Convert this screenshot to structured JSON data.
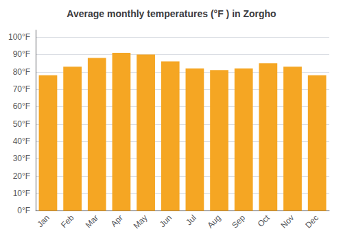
{
  "chart_data": {
    "type": "bar",
    "title": "Average monthly temperatures (°F ) in Zorgho",
    "categories": [
      "Jan",
      "Feb",
      "Mar",
      "Apr",
      "May",
      "Jun",
      "Jul",
      "Aug",
      "Sep",
      "Oct",
      "Nov",
      "Dec"
    ],
    "values": [
      78,
      83,
      88,
      91,
      90,
      86,
      82,
      81,
      82,
      85,
      83,
      78
    ],
    "color": "#F5A623",
    "ylim": [
      0,
      104
    ],
    "yticks": [
      {
        "value": 0,
        "label": "0°F"
      },
      {
        "value": 10,
        "label": "10°F"
      },
      {
        "value": 20,
        "label": "20°F"
      },
      {
        "value": 30,
        "label": "30°F"
      },
      {
        "value": 40,
        "label": "40°F"
      },
      {
        "value": 50,
        "label": "50°F"
      },
      {
        "value": 60,
        "label": "60°F"
      },
      {
        "value": 70,
        "label": "70°F"
      },
      {
        "value": 80,
        "label": "80°F"
      },
      {
        "value": 90,
        "label": "90°F"
      },
      {
        "value": 100,
        "label": "100°F"
      }
    ],
    "grid": true
  }
}
